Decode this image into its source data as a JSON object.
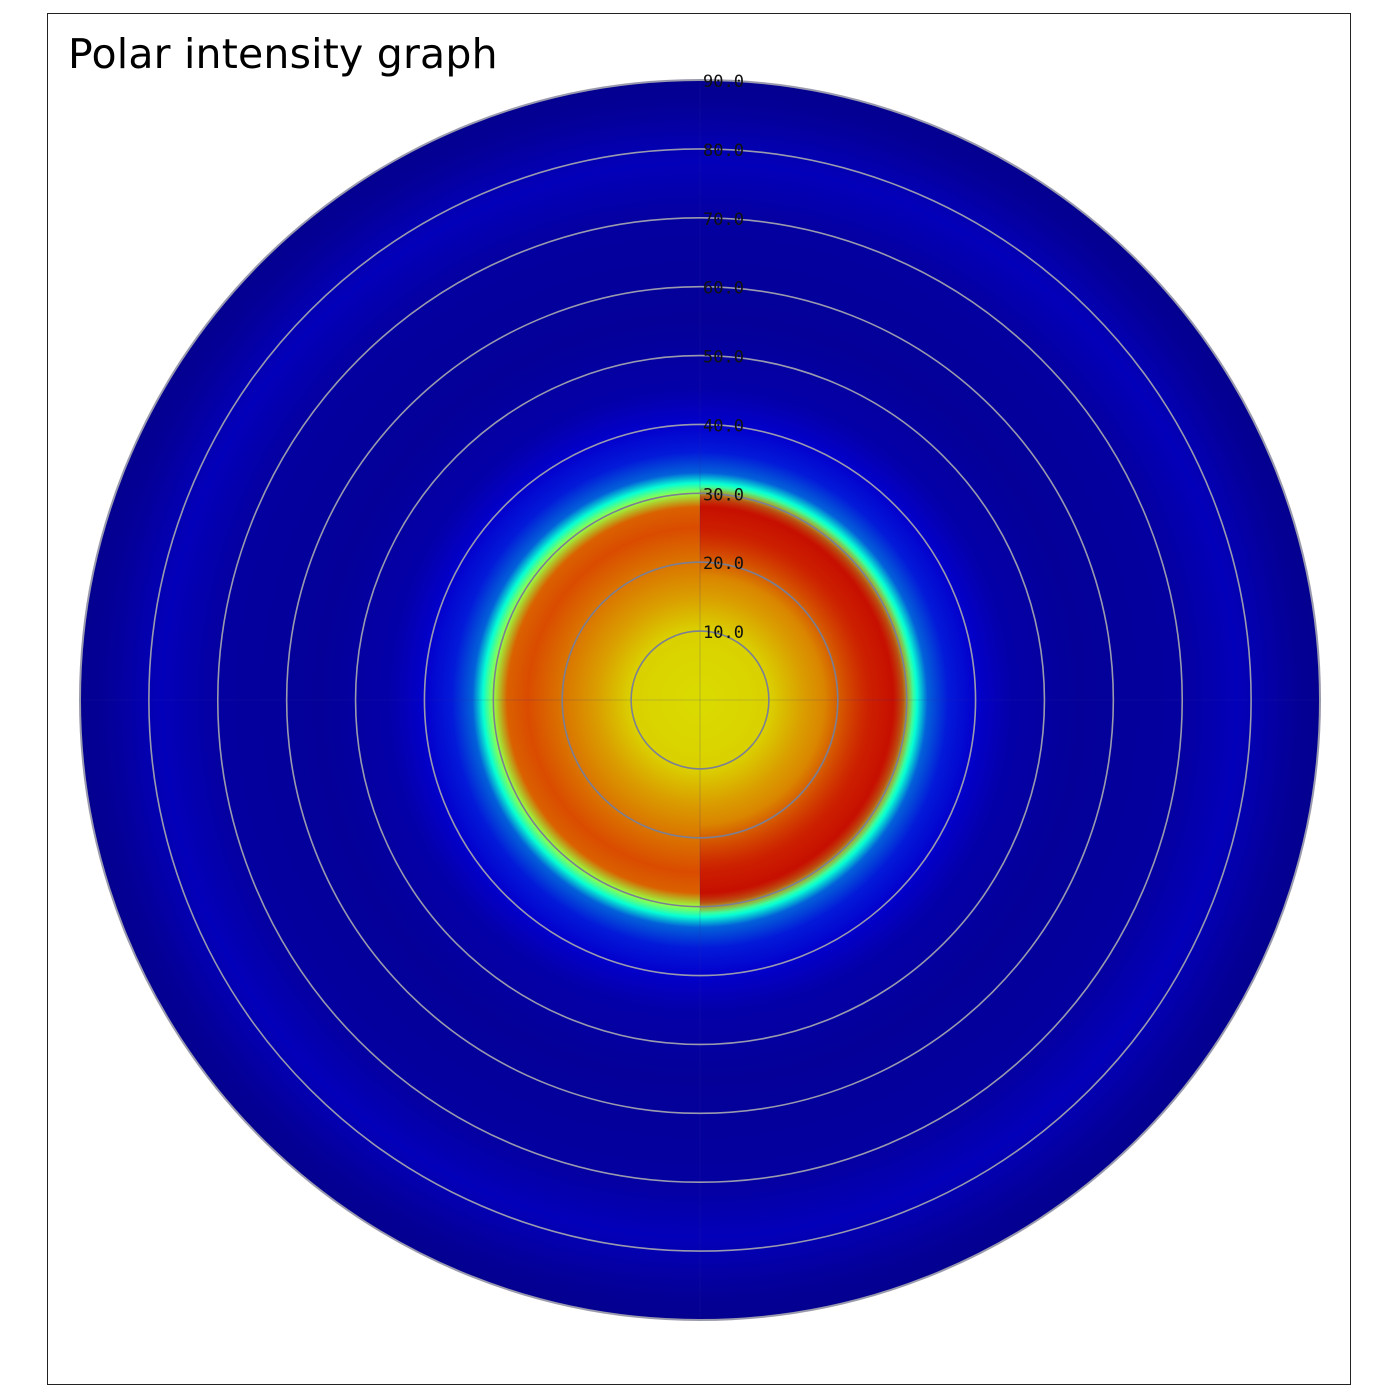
{
  "chart_data": {
    "type": "heatmap",
    "projection": "polar",
    "title": "Polar intensity graph",
    "radial_axis": {
      "range": [
        0,
        90
      ],
      "ticks": [
        10,
        20,
        30,
        40,
        50,
        60,
        70,
        80,
        90
      ],
      "tick_labels": [
        "10.0",
        "20.0",
        "30.0",
        "40.0",
        "50.0",
        "60.0",
        "70.0",
        "80.0",
        "90.0"
      ],
      "grid": true
    },
    "colormap": "jet",
    "intensity_profile": [
      {
        "r": 0,
        "level": 0.66
      },
      {
        "r": 10,
        "level": 0.67
      },
      {
        "r": 15,
        "level": 0.72
      },
      {
        "r": 20,
        "level": 0.76
      },
      {
        "r": 25,
        "level": 0.8
      },
      {
        "r": 28,
        "level": 0.78
      },
      {
        "r": 30,
        "level": 0.55
      },
      {
        "r": 31.5,
        "level": 0.38
      },
      {
        "r": 33,
        "level": 0.22
      },
      {
        "r": 36,
        "level": 0.15
      },
      {
        "r": 40,
        "level": 0.11
      },
      {
        "r": 45,
        "level": 0.07
      },
      {
        "r": 55,
        "level": 0.05
      },
      {
        "r": 70,
        "level": 0.06
      },
      {
        "r": 78,
        "level": 0.09
      },
      {
        "r": 86,
        "level": 0.05
      },
      {
        "r": 90,
        "level": 0.04
      }
    ],
    "hotspot": {
      "direction": "right",
      "level": 0.9
    }
  }
}
